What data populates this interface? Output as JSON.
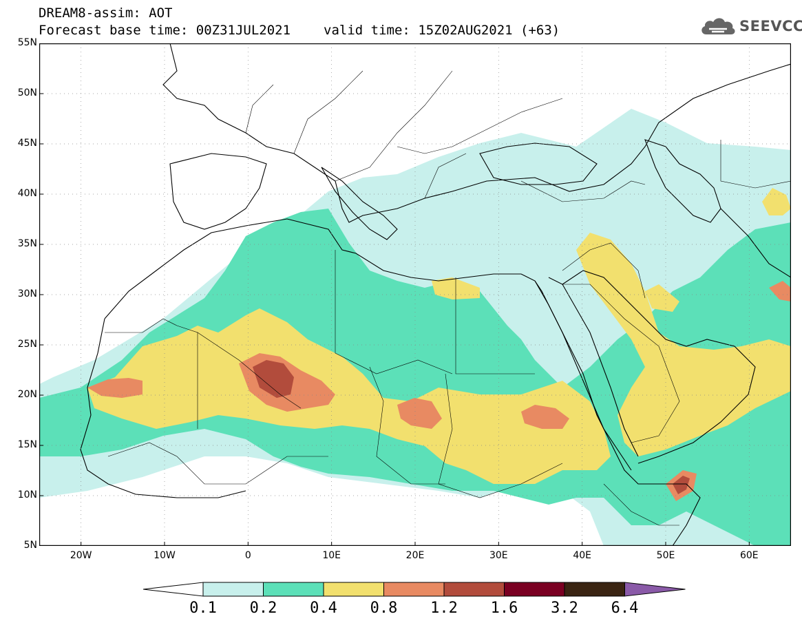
{
  "header": {
    "line1": "DREAM8-assim: AOT",
    "line2_base": "Forecast base time: 00Z31JUL2021",
    "line2_valid": "valid time: 15Z02AUG2021 (+63)",
    "logo_text": "SEEVCCC",
    "logo_icon": "cloud-icon"
  },
  "map": {
    "lon_range": [
      -25,
      65
    ],
    "lat_range": [
      5,
      55
    ],
    "lat_ticks": [
      "55N",
      "50N",
      "45N",
      "40N",
      "35N",
      "30N",
      "25N",
      "20N",
      "15N",
      "10N",
      "5N"
    ],
    "lat_values": [
      55,
      50,
      45,
      40,
      35,
      30,
      25,
      20,
      15,
      10,
      5
    ],
    "lon_ticks": [
      "20W",
      "10W",
      "0",
      "10E",
      "20E",
      "30E",
      "40E",
      "50E",
      "60E"
    ],
    "lon_values": [
      -20,
      -10,
      0,
      10,
      20,
      30,
      40,
      50,
      60
    ]
  },
  "colorbar": {
    "labels": [
      "0.1",
      "0.2",
      "0.4",
      "0.8",
      "1.2",
      "1.6",
      "3.2",
      "6.4"
    ],
    "colors": [
      "#c8f0ec",
      "#5ce0b8",
      "#f2e06e",
      "#e88a62",
      "#b24c3c",
      "#7a0022",
      "#3a2412",
      "#8a5aa8"
    ]
  },
  "colors": {
    "c1": "#c8f0ec",
    "c2": "#5ce0b8",
    "c3": "#f2e06e",
    "c4": "#e88a62",
    "c5": "#b24c3c"
  }
}
